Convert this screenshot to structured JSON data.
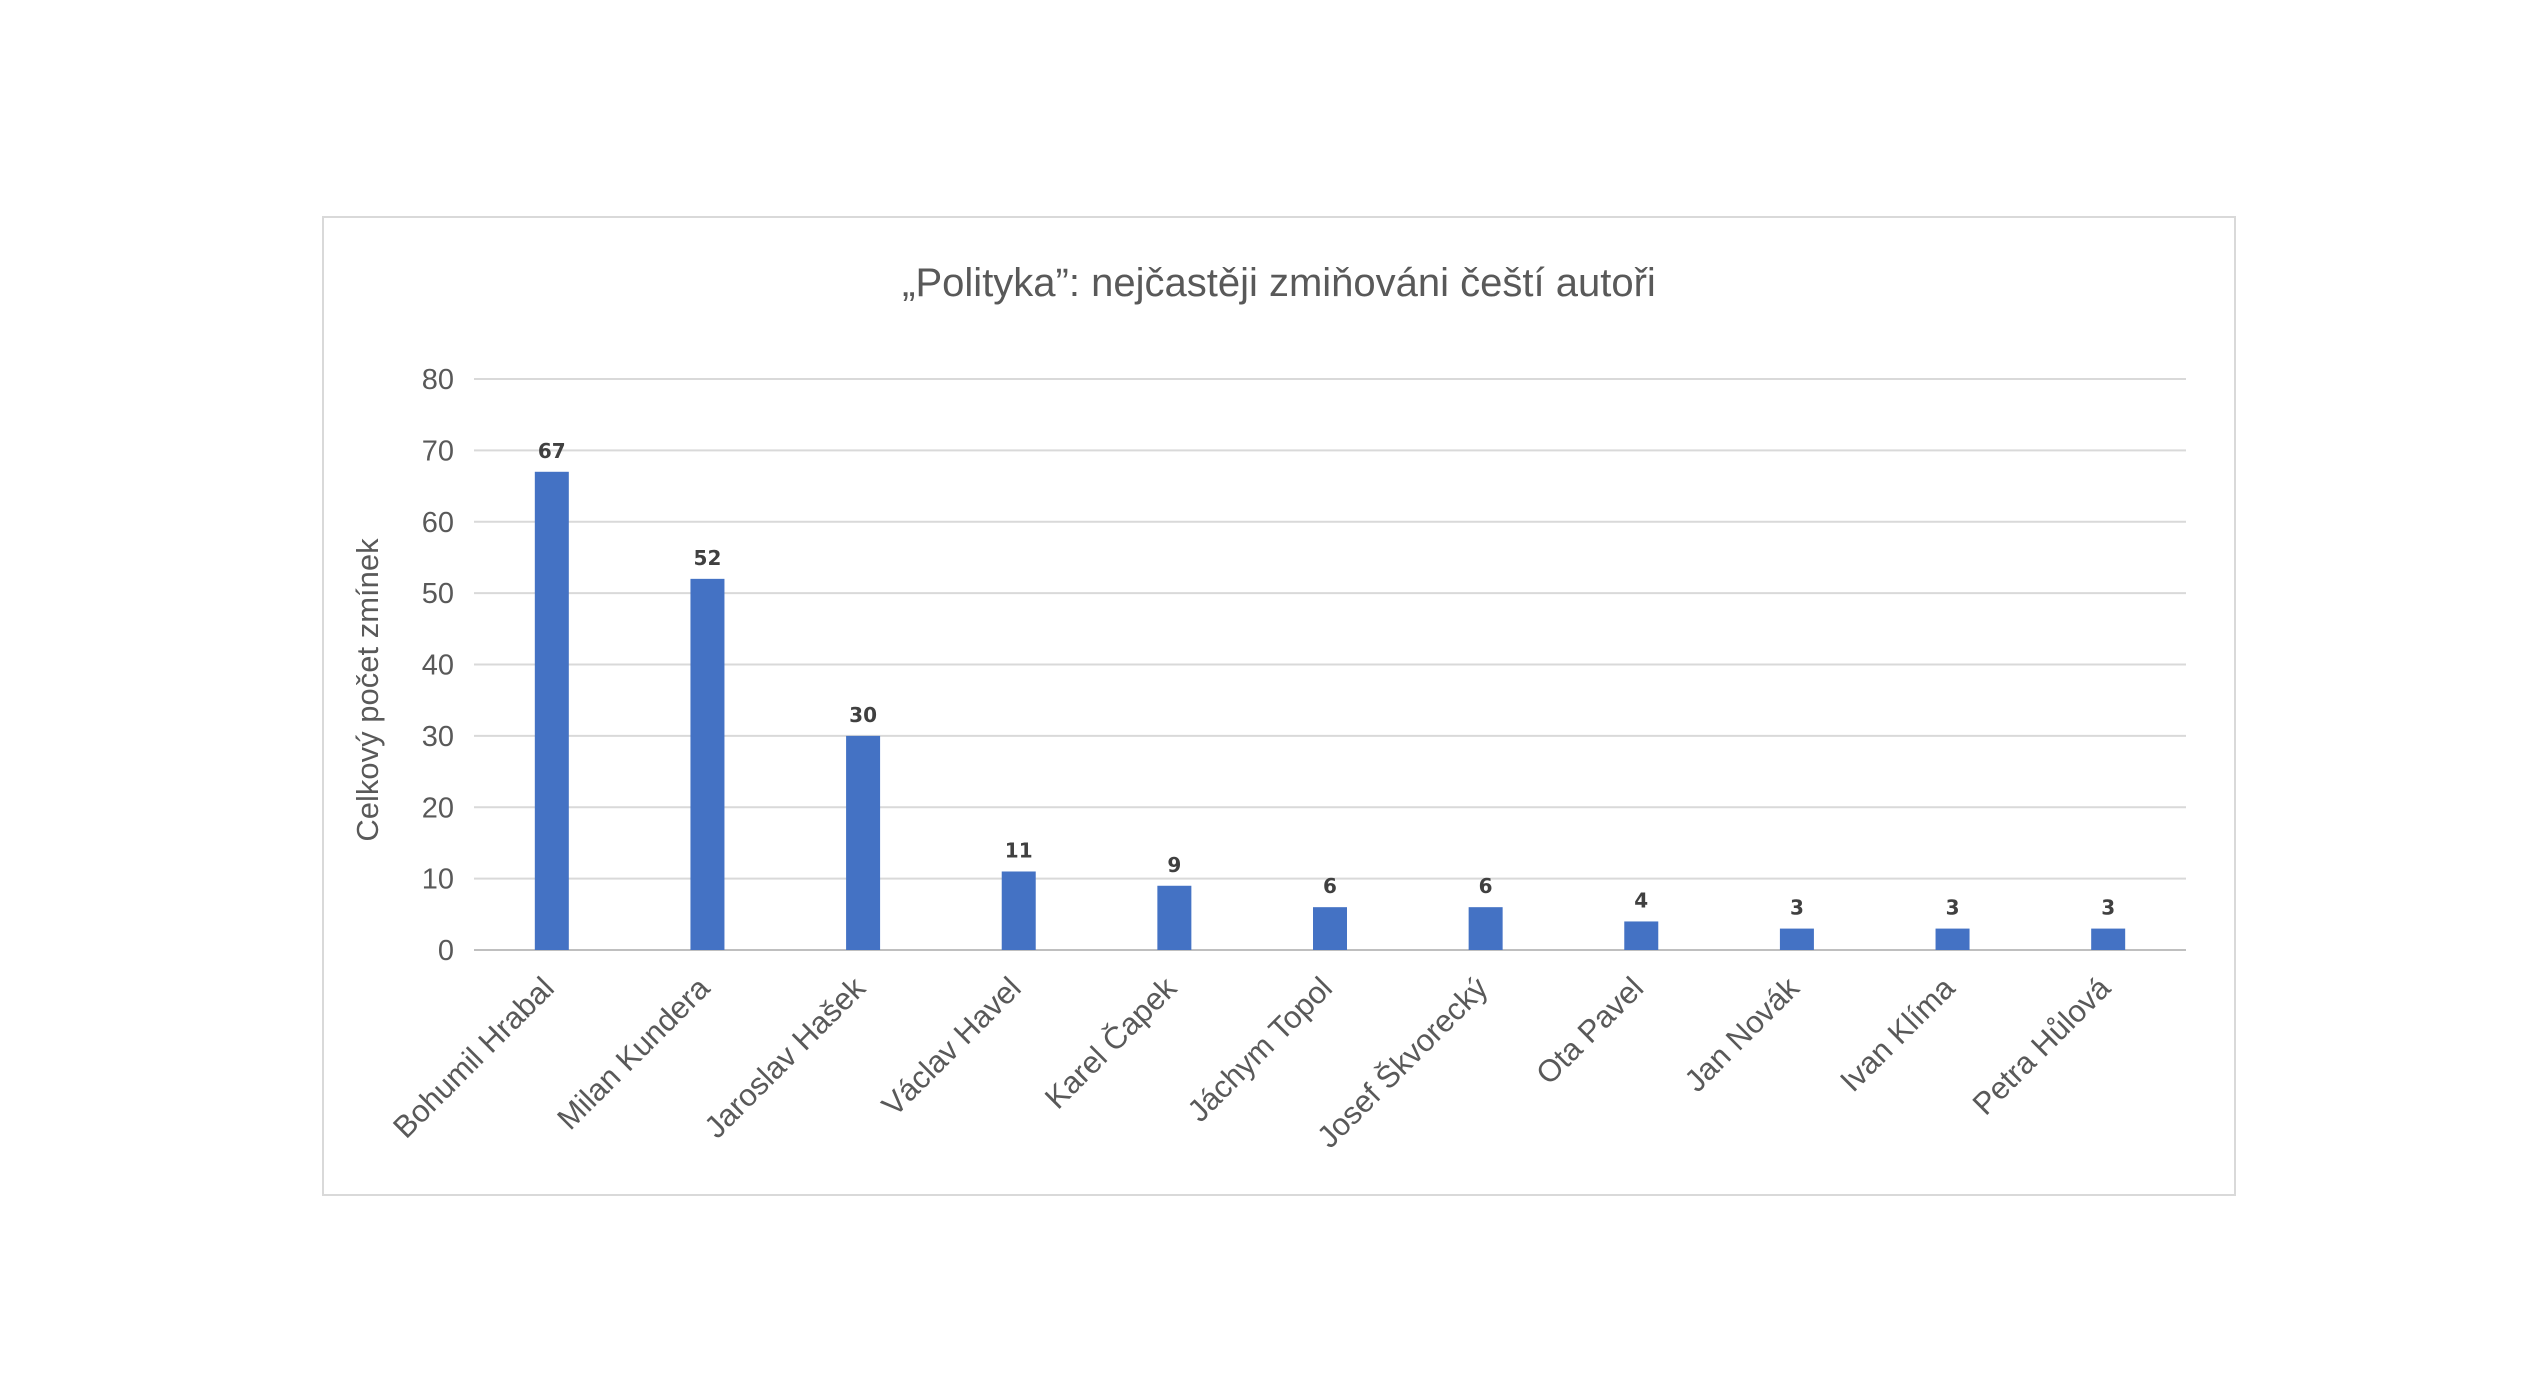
{
  "chart_data": {
    "type": "bar",
    "title": "„Polityka”: nejčastěji zmiňováni čeští autoři",
    "xlabel": "",
    "ylabel": "Celkový počet zmínek",
    "categories": [
      "Bohumil Hrabal",
      "Milan Kundera",
      "Jaroslav Hašek",
      "Václav Havel",
      "Karel Čapek",
      "Jáchym Topol",
      "Josef Škvorecký",
      "Ota Pavel",
      "Jan Novák",
      "Ivan Klíma",
      "Petra Hůlová"
    ],
    "values": [
      67,
      52,
      30,
      11,
      9,
      6,
      6,
      4,
      3,
      3,
      3
    ],
    "ylim": [
      0,
      80
    ],
    "yticks": [
      0,
      10,
      20,
      30,
      40,
      50,
      60,
      70,
      80
    ],
    "grid": true,
    "data_labels": true,
    "bar_color": "#4472c4"
  }
}
